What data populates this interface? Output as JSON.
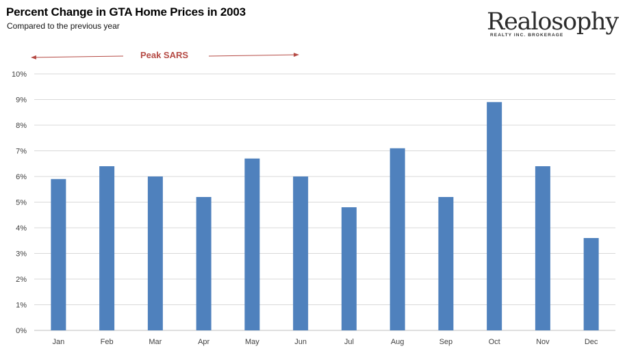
{
  "header": {
    "title": "Percent Change in GTA Home Prices in 2003",
    "subtitle": "Compared to the previous year"
  },
  "logo": {
    "wordmark": "Realosophy",
    "tagline": "REALTY INC. BROKERAGE"
  },
  "annotation": {
    "label": "Peak SARS",
    "color": "#b54a44"
  },
  "colors": {
    "bar": "#4f81bd",
    "grid": "#d9d9d9"
  },
  "chart_data": {
    "type": "bar",
    "title": "Percent Change in GTA Home Prices in 2003",
    "subtitle": "Compared to the previous year",
    "categories": [
      "Jan",
      "Feb",
      "Mar",
      "Apr",
      "May",
      "Jun",
      "Jul",
      "Aug",
      "Sep",
      "Oct",
      "Nov",
      "Dec"
    ],
    "values": [
      5.9,
      6.4,
      6.0,
      5.2,
      6.7,
      6.0,
      4.8,
      7.1,
      5.2,
      8.9,
      6.4,
      3.6
    ],
    "ylim": [
      0,
      10
    ],
    "yticks": [
      0,
      1,
      2,
      3,
      4,
      5,
      6,
      7,
      8,
      9,
      10
    ],
    "ytick_labels": [
      "0%",
      "1%",
      "2%",
      "3%",
      "4%",
      "5%",
      "6%",
      "7%",
      "8%",
      "9%",
      "10%"
    ],
    "xlabel": "",
    "ylabel": "",
    "grid": true,
    "legend": "none"
  }
}
